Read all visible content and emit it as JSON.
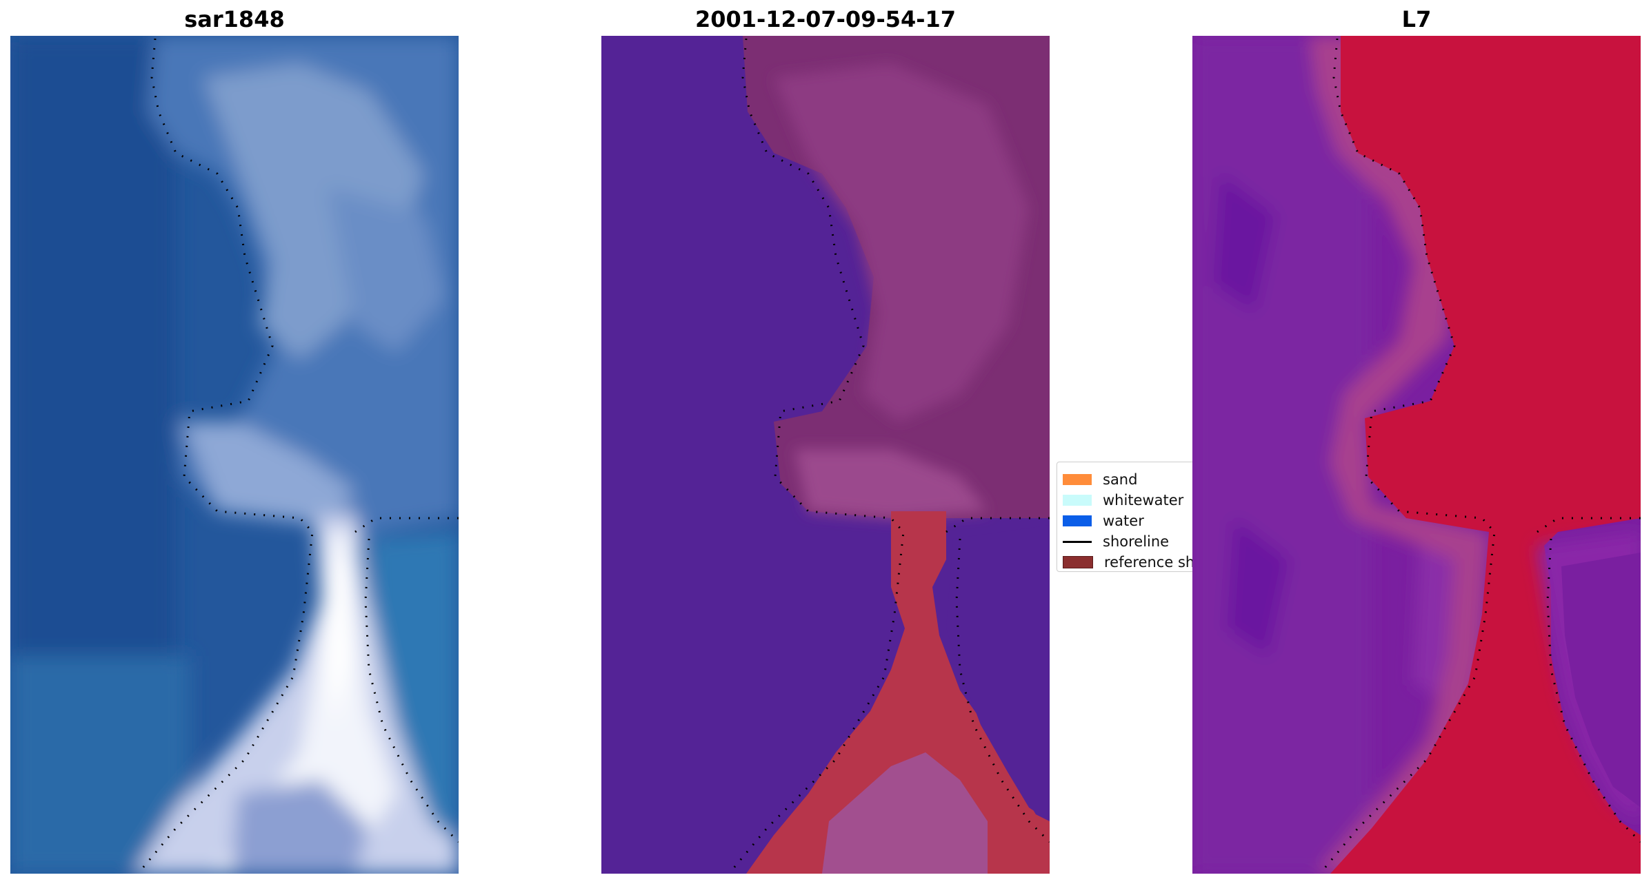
{
  "panels": [
    {
      "title": "sar1848",
      "image": "true-color satellite image of coastline with river mouth, dotted shoreline"
    },
    {
      "title": "2001-12-07-09-54-17",
      "image": "classified image: water (purple) and land/sand (red), dotted shoreline"
    },
    {
      "title": "L7",
      "image": "water index image: water (purple) and land (red), dotted shoreline"
    }
  ],
  "legend": {
    "items": [
      {
        "label": "sand",
        "color": "#ff8c3a",
        "kind": "patch"
      },
      {
        "label": "whitewater",
        "color": "#c9fbfb",
        "kind": "patch"
      },
      {
        "label": "water",
        "color": "#0b5ee8",
        "kind": "patch"
      },
      {
        "label": "shoreline",
        "color": "#000000",
        "kind": "line"
      },
      {
        "label": "reference shoreline buffer",
        "color": "#8b2e2e",
        "kind": "patch"
      }
    ]
  }
}
